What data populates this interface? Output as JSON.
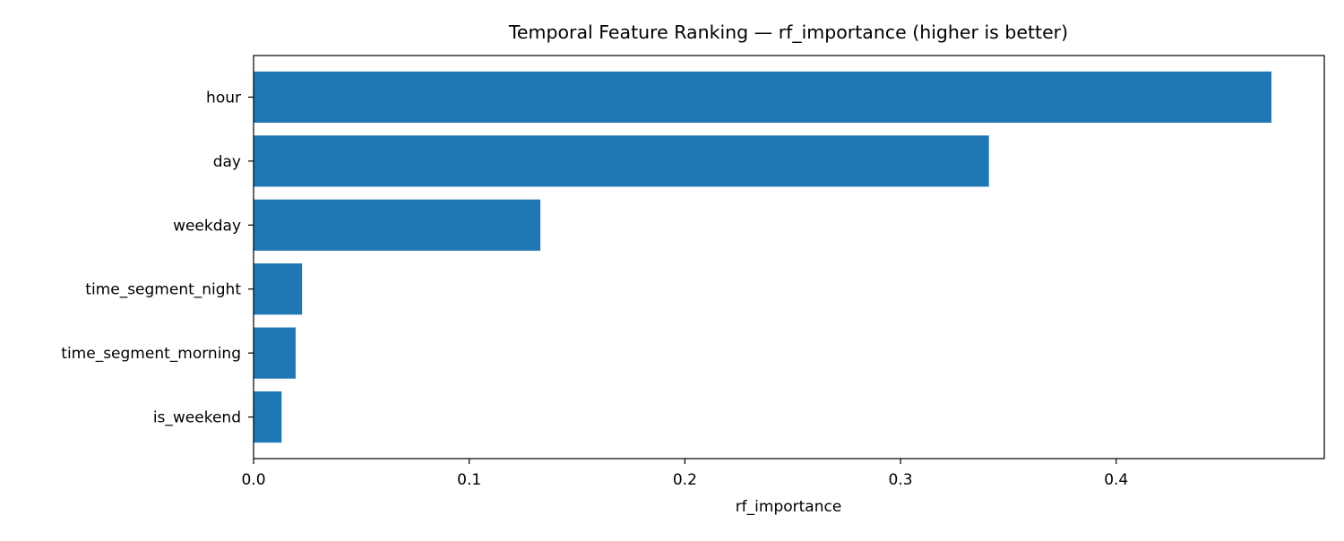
{
  "chart_data": {
    "type": "bar",
    "orientation": "horizontal",
    "title": "Temporal Feature Ranking — rf_importance (higher is better)",
    "xlabel": "rf_importance",
    "ylabel": "",
    "categories": [
      "hour",
      "day",
      "weekday",
      "time_segment_night",
      "time_segment_morning",
      "is_weekend"
    ],
    "values": [
      0.472,
      0.341,
      0.133,
      0.0225,
      0.0195,
      0.013
    ],
    "xlim": [
      0,
      0.4965
    ],
    "xticks": [
      0.0,
      0.1,
      0.2,
      0.3,
      0.4
    ],
    "xtick_labels": [
      "0.0",
      "0.1",
      "0.2",
      "0.3",
      "0.4"
    ],
    "grid": false,
    "legend": "none",
    "bar_color": "#1f77b4",
    "axis_color": "#000000"
  }
}
